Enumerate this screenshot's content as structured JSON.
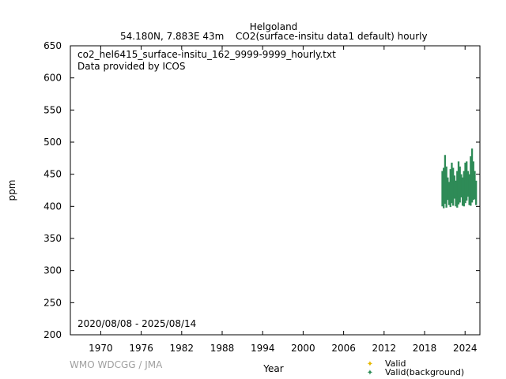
{
  "header": {
    "station": "Helgoland",
    "location": "54.180N, 7.883E 43m",
    "dataset": "CO2(surface-insitu data1 default) hourly"
  },
  "annotations": {
    "filename": "co2_hel6415_surface-insitu_162_9999-9999_hourly.txt",
    "provider": "Data provided by ICOS",
    "date_range": "2020/08/08 - 2025/08/14"
  },
  "footer": {
    "credit": "WMO WDCGG / JMA"
  },
  "colors": {
    "valid": "#e6b800",
    "background": "#2e8b57",
    "axis": "#000000"
  },
  "chart_data": {
    "type": "scatter",
    "xlabel": "Year",
    "ylabel": "ppm",
    "xlim": [
      1965.5,
      2026.2
    ],
    "ylim": [
      200,
      650
    ],
    "xticks": [
      1970,
      1976,
      1982,
      1988,
      1994,
      2000,
      2006,
      2012,
      2018,
      2024
    ],
    "yticks": [
      200,
      250,
      300,
      350,
      400,
      450,
      500,
      550,
      600,
      650
    ],
    "legend": [
      "Valid",
      "Valid(background)"
    ],
    "legend_position": "bottom-right",
    "series": [
      {
        "name": "Valid(background)",
        "color": "#2e8b57",
        "x": [
          2020.6,
          2020.8,
          2021.0,
          2021.2,
          2021.4,
          2021.6,
          2021.8,
          2022.0,
          2022.2,
          2022.4,
          2022.6,
          2022.8,
          2023.0,
          2023.2,
          2023.4,
          2023.6,
          2023.8,
          2024.0,
          2024.2,
          2024.4,
          2024.6,
          2024.8,
          2025.0,
          2025.2,
          2025.4,
          2025.6
        ],
        "ymin": [
          400,
          397,
          404,
          398,
          410,
          402,
          399,
          405,
          401,
          412,
          400,
          398,
          403,
          406,
          414,
          401,
          400,
          405,
          409,
          415,
          402,
          401,
          406,
          410,
          411,
          402
        ],
        "ymax": [
          455,
          460,
          480,
          462,
          445,
          438,
          458,
          468,
          460,
          448,
          440,
          455,
          470,
          462,
          450,
          445,
          455,
          468,
          470,
          455,
          450,
          478,
          490,
          470,
          455,
          440
        ]
      }
    ]
  }
}
